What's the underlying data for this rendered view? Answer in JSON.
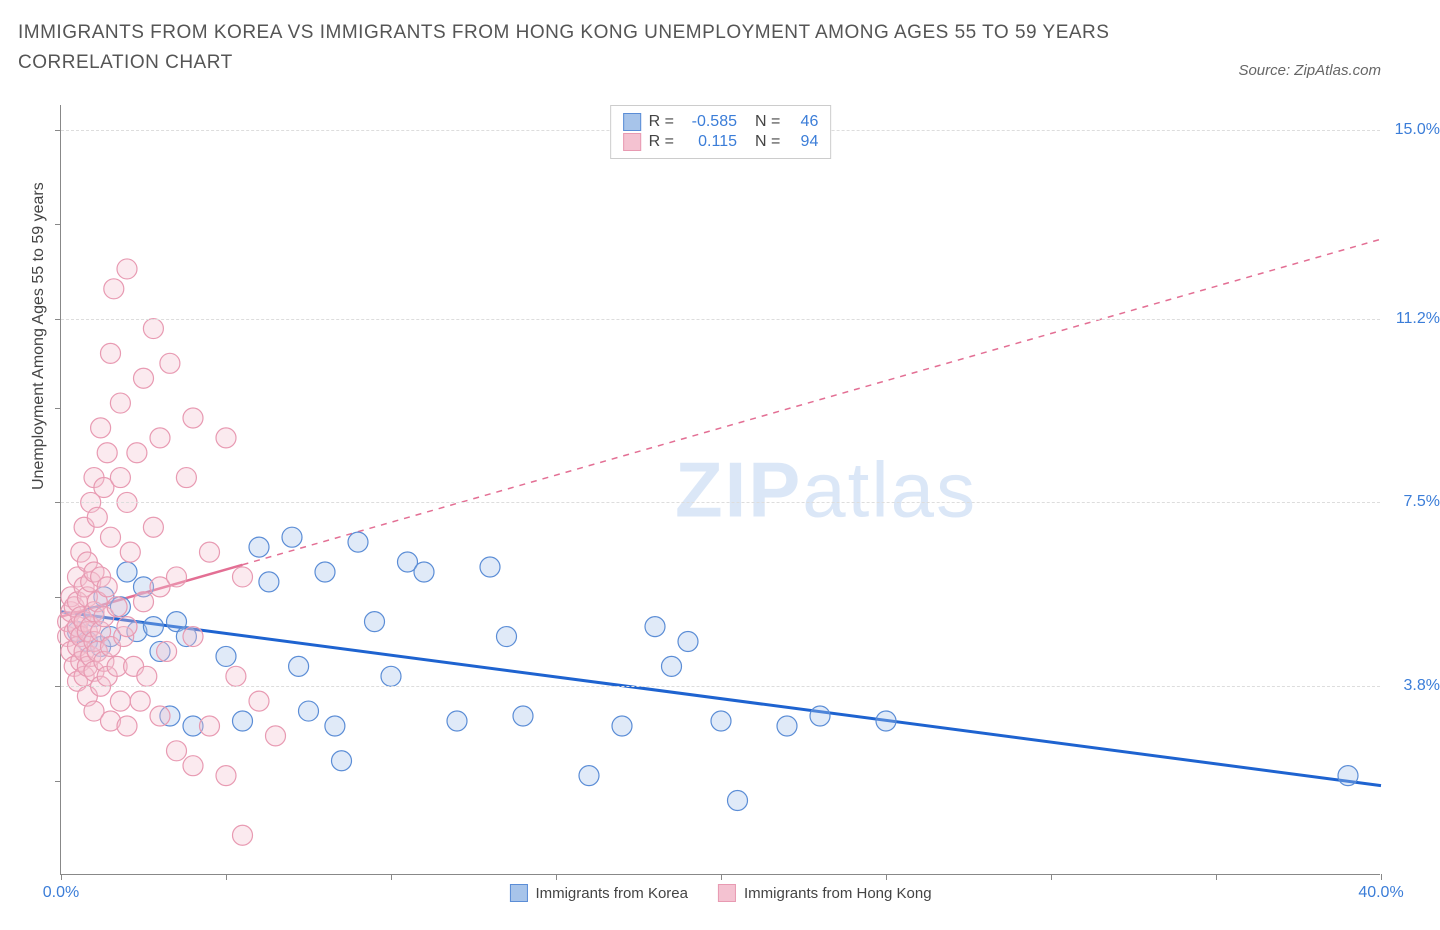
{
  "title": "IMMIGRANTS FROM KOREA VS IMMIGRANTS FROM HONG KONG UNEMPLOYMENT AMONG AGES 55 TO 59 YEARS CORRELATION CHART",
  "source": "Source: ZipAtlas.com",
  "ylabel": "Unemployment Among Ages 55 to 59 years",
  "watermark_zip": "ZIP",
  "watermark_atlas": "atlas",
  "chart": {
    "type": "scatter-with-regression",
    "xlim": [
      0,
      40
    ],
    "ylim": [
      0,
      15.5
    ],
    "xticks_labeled": [
      {
        "v": 0.0,
        "label": "0.0%"
      },
      {
        "v": 40.0,
        "label": "40.0%"
      }
    ],
    "xticks_unlabeled": [
      5,
      10,
      15,
      20,
      25,
      30,
      35
    ],
    "yticks_labeled": [
      {
        "v": 3.8,
        "label": "3.8%"
      },
      {
        "v": 7.5,
        "label": "7.5%"
      },
      {
        "v": 11.2,
        "label": "11.2%"
      },
      {
        "v": 15.0,
        "label": "15.0%"
      }
    ],
    "yticks_unlabeled": [
      1.9,
      5.6,
      9.4,
      13.1
    ],
    "gridlines_y": [
      3.8,
      7.5,
      11.2,
      15.0
    ],
    "background_color": "#ffffff",
    "grid_color": "#dddddd",
    "marker_radius": 10,
    "marker_stroke_width": 1.2,
    "marker_fill_opacity": 0.35,
    "series": [
      {
        "name": "Immigrants from Korea",
        "color_stroke": "#5b8dd6",
        "color_fill": "#a7c4ea",
        "R": "-0.585",
        "N": "46",
        "regression": {
          "x1": 0,
          "y1": 5.3,
          "x2": 40,
          "y2": 1.8,
          "solid_until_x": 40,
          "line_color": "#1e63d0",
          "line_width": 3
        },
        "points": [
          [
            0.5,
            4.9
          ],
          [
            0.8,
            4.7
          ],
          [
            1.0,
            5.2
          ],
          [
            1.2,
            4.6
          ],
          [
            1.3,
            5.6
          ],
          [
            1.5,
            4.8
          ],
          [
            1.8,
            5.4
          ],
          [
            2.0,
            6.1
          ],
          [
            2.3,
            4.9
          ],
          [
            2.5,
            5.8
          ],
          [
            2.8,
            5.0
          ],
          [
            3.0,
            4.5
          ],
          [
            3.3,
            3.2
          ],
          [
            3.5,
            5.1
          ],
          [
            3.8,
            4.8
          ],
          [
            4.0,
            3.0
          ],
          [
            5.0,
            4.4
          ],
          [
            5.5,
            3.1
          ],
          [
            6.0,
            6.6
          ],
          [
            6.3,
            5.9
          ],
          [
            7.0,
            6.8
          ],
          [
            7.2,
            4.2
          ],
          [
            7.5,
            3.3
          ],
          [
            8.0,
            6.1
          ],
          [
            8.3,
            3.0
          ],
          [
            8.5,
            2.3
          ],
          [
            9.0,
            6.7
          ],
          [
            9.5,
            5.1
          ],
          [
            10.0,
            4.0
          ],
          [
            10.5,
            6.3
          ],
          [
            11.0,
            6.1
          ],
          [
            12.0,
            3.1
          ],
          [
            13.0,
            6.2
          ],
          [
            13.5,
            4.8
          ],
          [
            14.0,
            3.2
          ],
          [
            16.0,
            2.0
          ],
          [
            17.0,
            3.0
          ],
          [
            18.0,
            5.0
          ],
          [
            18.5,
            4.2
          ],
          [
            19.0,
            4.7
          ],
          [
            20.0,
            3.1
          ],
          [
            20.5,
            1.5
          ],
          [
            22.0,
            3.0
          ],
          [
            23.0,
            3.2
          ],
          [
            25.0,
            3.1
          ],
          [
            39.0,
            2.0
          ]
        ]
      },
      {
        "name": "Immigrants from Hong Kong",
        "color_stroke": "#e89ab2",
        "color_fill": "#f4c2d1",
        "R": "0.115",
        "N": "94",
        "regression": {
          "x1": 0,
          "y1": 5.2,
          "x2": 40,
          "y2": 12.8,
          "solid_until_x": 5.5,
          "line_color": "#e36f94",
          "line_width": 2.5
        },
        "points": [
          [
            0.2,
            4.8
          ],
          [
            0.2,
            5.1
          ],
          [
            0.3,
            4.5
          ],
          [
            0.3,
            5.3
          ],
          [
            0.3,
            5.6
          ],
          [
            0.4,
            4.2
          ],
          [
            0.4,
            4.9
          ],
          [
            0.4,
            5.4
          ],
          [
            0.5,
            3.9
          ],
          [
            0.5,
            4.6
          ],
          [
            0.5,
            5.0
          ],
          [
            0.5,
            5.5
          ],
          [
            0.5,
            6.0
          ],
          [
            0.6,
            4.3
          ],
          [
            0.6,
            4.8
          ],
          [
            0.6,
            5.2
          ],
          [
            0.6,
            6.5
          ],
          [
            0.7,
            4.0
          ],
          [
            0.7,
            4.5
          ],
          [
            0.7,
            5.1
          ],
          [
            0.7,
            5.8
          ],
          [
            0.7,
            7.0
          ],
          [
            0.8,
            3.6
          ],
          [
            0.8,
            4.2
          ],
          [
            0.8,
            4.9
          ],
          [
            0.8,
            5.6
          ],
          [
            0.8,
            6.3
          ],
          [
            0.9,
            4.4
          ],
          [
            0.9,
            5.0
          ],
          [
            0.9,
            5.9
          ],
          [
            0.9,
            7.5
          ],
          [
            1.0,
            3.3
          ],
          [
            1.0,
            4.1
          ],
          [
            1.0,
            4.7
          ],
          [
            1.0,
            5.3
          ],
          [
            1.0,
            6.1
          ],
          [
            1.0,
            8.0
          ],
          [
            1.1,
            4.5
          ],
          [
            1.1,
            5.5
          ],
          [
            1.1,
            7.2
          ],
          [
            1.2,
            3.8
          ],
          [
            1.2,
            4.9
          ],
          [
            1.2,
            6.0
          ],
          [
            1.2,
            9.0
          ],
          [
            1.3,
            4.3
          ],
          [
            1.3,
            5.2
          ],
          [
            1.3,
            7.8
          ],
          [
            1.4,
            4.0
          ],
          [
            1.4,
            5.8
          ],
          [
            1.4,
            8.5
          ],
          [
            1.5,
            3.1
          ],
          [
            1.5,
            4.6
          ],
          [
            1.5,
            6.8
          ],
          [
            1.5,
            10.5
          ],
          [
            1.6,
            11.8
          ],
          [
            1.7,
            4.2
          ],
          [
            1.7,
            5.4
          ],
          [
            1.8,
            3.5
          ],
          [
            1.8,
            8.0
          ],
          [
            1.8,
            9.5
          ],
          [
            1.9,
            4.8
          ],
          [
            2.0,
            3.0
          ],
          [
            2.0,
            5.0
          ],
          [
            2.0,
            7.5
          ],
          [
            2.0,
            12.2
          ],
          [
            2.1,
            6.5
          ],
          [
            2.2,
            4.2
          ],
          [
            2.3,
            8.5
          ],
          [
            2.4,
            3.5
          ],
          [
            2.5,
            5.5
          ],
          [
            2.5,
            10.0
          ],
          [
            2.6,
            4.0
          ],
          [
            2.8,
            7.0
          ],
          [
            2.8,
            11.0
          ],
          [
            3.0,
            3.2
          ],
          [
            3.0,
            5.8
          ],
          [
            3.0,
            8.8
          ],
          [
            3.2,
            4.5
          ],
          [
            3.3,
            10.3
          ],
          [
            3.5,
            2.5
          ],
          [
            3.5,
            6.0
          ],
          [
            3.8,
            8.0
          ],
          [
            4.0,
            2.2
          ],
          [
            4.0,
            4.8
          ],
          [
            4.0,
            9.2
          ],
          [
            4.5,
            3.0
          ],
          [
            4.5,
            6.5
          ],
          [
            5.0,
            2.0
          ],
          [
            5.0,
            8.8
          ],
          [
            5.3,
            4.0
          ],
          [
            5.5,
            0.8
          ],
          [
            5.5,
            6.0
          ],
          [
            6.0,
            3.5
          ],
          [
            6.5,
            2.8
          ]
        ]
      }
    ]
  },
  "legend_bottom": [
    {
      "label": "Immigrants from Korea",
      "stroke": "#5b8dd6",
      "fill": "#a7c4ea"
    },
    {
      "label": "Immigrants from Hong Kong",
      "stroke": "#e89ab2",
      "fill": "#f4c2d1"
    }
  ]
}
